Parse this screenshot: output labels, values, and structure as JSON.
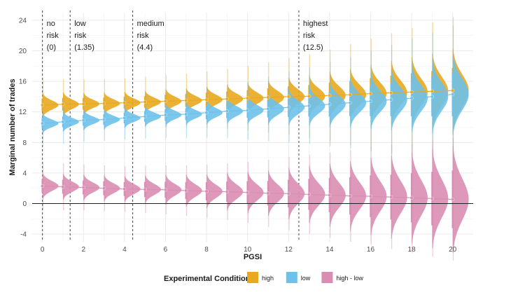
{
  "chart_data": {
    "type": "scatter",
    "title": "",
    "xlabel": "PGSI",
    "ylabel": "Marginal number of trades",
    "xlim": [
      -0.5,
      21
    ],
    "ylim": [
      -5,
      25
    ],
    "x_ticks": [
      0,
      2,
      4,
      6,
      8,
      10,
      12,
      14,
      16,
      18,
      20
    ],
    "y_ticks": [
      -4,
      0,
      4,
      8,
      12,
      16,
      20,
      24
    ],
    "x": [
      0,
      1,
      2,
      3,
      4,
      5,
      6,
      7,
      8,
      9,
      10,
      11,
      12,
      13,
      14,
      15,
      16,
      17,
      18,
      19,
      20
    ],
    "series": [
      {
        "name": "high",
        "color": "#E8A91F",
        "values": [
          12.9,
          13.0,
          13.05,
          13.1,
          13.2,
          13.3,
          13.4,
          13.5,
          13.6,
          13.7,
          13.8,
          13.9,
          14.0,
          14.05,
          14.15,
          14.25,
          14.4,
          14.5,
          14.6,
          14.7,
          14.8
        ],
        "spread": [
          1.2,
          1.2,
          1.1,
          1.1,
          1.1,
          1.1,
          1.2,
          1.2,
          1.3,
          1.4,
          1.5,
          1.7,
          1.9,
          2.1,
          2.4,
          2.6,
          2.9,
          3.2,
          3.5,
          3.8,
          4.2
        ],
        "tail": [
          3.5,
          3.3,
          3.2,
          3.2,
          3.2,
          3.3,
          3.4,
          3.5,
          3.7,
          3.9,
          4.2,
          4.6,
          5.0,
          5.5,
          6.0,
          6.6,
          7.2,
          7.8,
          8.4,
          9.0,
          9.6
        ]
      },
      {
        "name": "low",
        "color": "#6EC1EA",
        "values": [
          10.5,
          10.7,
          10.9,
          11.0,
          11.2,
          11.4,
          11.6,
          11.7,
          11.9,
          12.1,
          12.2,
          12.4,
          12.6,
          12.8,
          13.0,
          13.2,
          13.4,
          13.6,
          13.8,
          14.0,
          14.3
        ],
        "spread": [
          1.0,
          1.0,
          1.0,
          1.0,
          1.0,
          1.0,
          1.1,
          1.1,
          1.2,
          1.3,
          1.4,
          1.6,
          1.8,
          2.0,
          2.3,
          2.5,
          2.8,
          3.1,
          3.4,
          3.7,
          4.1
        ],
        "tail": [
          3.0,
          2.9,
          2.8,
          2.8,
          2.8,
          2.9,
          3.0,
          3.1,
          3.3,
          3.5,
          3.8,
          4.2,
          4.6,
          5.0,
          5.5,
          6.0,
          6.6,
          7.2,
          7.8,
          8.4,
          9.0
        ]
      },
      {
        "name": "high - low",
        "color": "#D98DB3",
        "values": [
          2.3,
          2.2,
          2.1,
          2.0,
          1.9,
          1.85,
          1.8,
          1.7,
          1.6,
          1.55,
          1.45,
          1.35,
          1.3,
          1.2,
          1.1,
          1.0,
          0.95,
          0.85,
          0.75,
          0.65,
          0.55
        ],
        "spread": [
          1.3,
          1.3,
          1.3,
          1.3,
          1.3,
          1.4,
          1.5,
          1.6,
          1.7,
          1.9,
          2.1,
          2.3,
          2.6,
          2.9,
          3.2,
          3.5,
          3.9,
          4.2,
          4.6,
          5.0,
          5.4
        ],
        "tail": [
          3.2,
          3.1,
          3.0,
          3.0,
          3.0,
          3.1,
          3.2,
          3.3,
          3.5,
          3.7,
          4.0,
          4.4,
          4.8,
          5.2,
          5.6,
          6.0,
          6.4,
          6.8,
          7.2,
          7.6,
          8.0
        ]
      }
    ],
    "thresholds": [
      {
        "x": 0,
        "label_lines": [
          "no",
          "risk",
          "(0)"
        ]
      },
      {
        "x": 1.35,
        "label_lines": [
          "low",
          "risk",
          "(1.35)"
        ]
      },
      {
        "x": 4.4,
        "label_lines": [
          "medium",
          "risk",
          "(4.4)"
        ]
      },
      {
        "x": 12.5,
        "label_lines": [
          "highest",
          "risk",
          "(12.5)"
        ]
      }
    ],
    "legend": {
      "title": "Experimental Condition",
      "position": "bottom",
      "entries": [
        "high",
        "low",
        "high - low"
      ]
    },
    "zero_line": true,
    "grid": true
  }
}
